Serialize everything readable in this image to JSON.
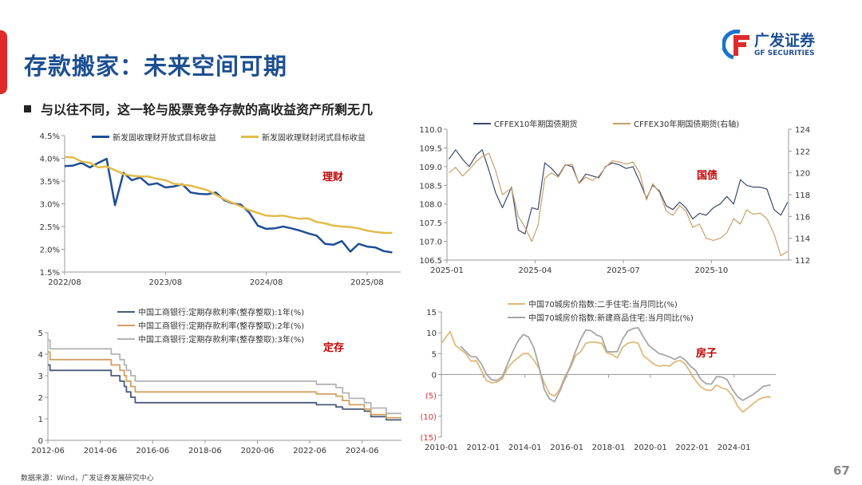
{
  "header": {
    "title": "存款搬家：未来空间可期",
    "subtitle": "与以往不同，这一轮与股票竞争存款的高收益资产所剩无几",
    "logo_cn": "广发证券",
    "logo_en": "GF SECURITIES",
    "title_color": "#1d4f91",
    "accent_color": "#e02a2a"
  },
  "footer": {
    "source": "数据来源：Wind，广发证券发展研究中心",
    "page_number": "67"
  },
  "chart_data": [
    {
      "type": "line",
      "tag": "理财",
      "x_ticks": [
        "2022/08",
        "2023/08",
        "2024/08",
        "2025/08"
      ],
      "x_tick_dates": [
        "2022-08",
        "2023-08",
        "2024-08",
        "2025-08"
      ],
      "y_ticks": [
        1.5,
        2.0,
        2.5,
        3.0,
        3.5,
        4.0,
        4.5
      ],
      "y_tick_labels": [
        "1.5%",
        "2.0%",
        "2.5%",
        "3.0%",
        "3.5%",
        "4.0%",
        "4.5%"
      ],
      "ylim": [
        1.5,
        4.5
      ],
      "x_range": [
        "2022-08",
        "2025-12"
      ],
      "dates": [
        "2022-08",
        "2022-09",
        "2022-10",
        "2022-11",
        "2022-12",
        "2023-01",
        "2023-02",
        "2023-03",
        "2023-04",
        "2023-05",
        "2023-06",
        "2023-07",
        "2023-08",
        "2023-09",
        "2023-10",
        "2023-11",
        "2023-12",
        "2024-01",
        "2024-02",
        "2024-03",
        "2024-04",
        "2024-05",
        "2024-06",
        "2024-07",
        "2024-08",
        "2024-09",
        "2024-10",
        "2024-11",
        "2024-12",
        "2025-01",
        "2025-02",
        "2025-03",
        "2025-04",
        "2025-05",
        "2025-06",
        "2025-07",
        "2025-08",
        "2025-09",
        "2025-10",
        "2025-11"
      ],
      "series": [
        {
          "name": "新发固收理财开放式目标收益",
          "color": "#1f4e96",
          "values": [
            3.83,
            3.84,
            3.9,
            3.8,
            3.9,
            3.99,
            2.97,
            3.68,
            3.52,
            3.58,
            3.42,
            3.45,
            3.36,
            3.38,
            3.43,
            3.25,
            3.22,
            3.21,
            3.25,
            3.08,
            3.01,
            2.98,
            2.8,
            2.52,
            2.45,
            2.46,
            2.5,
            2.46,
            2.41,
            2.35,
            2.3,
            2.12,
            2.1,
            2.18,
            1.95,
            2.12,
            2.06,
            2.04,
            1.96,
            1.93
          ]
        },
        {
          "name": "新发固收理财封闭式目标收益",
          "color": "#e2bb4a",
          "values": [
            4.03,
            4.02,
            3.93,
            3.9,
            3.8,
            3.82,
            3.74,
            3.65,
            3.62,
            3.6,
            3.6,
            3.55,
            3.52,
            3.44,
            3.42,
            3.4,
            3.35,
            3.3,
            3.2,
            3.1,
            3.02,
            2.94,
            2.86,
            2.8,
            2.74,
            2.73,
            2.74,
            2.7,
            2.67,
            2.68,
            2.6,
            2.57,
            2.52,
            2.5,
            2.49,
            2.46,
            2.41,
            2.38,
            2.36,
            2.36
          ]
        }
      ]
    },
    {
      "type": "line",
      "tag": "国债",
      "x_ticks": [
        "2025-01",
        "2025-04",
        "2025-07",
        "2025-10"
      ],
      "x_tick_dates": [
        "2025-01-01",
        "2025-04-01",
        "2025-07-01",
        "2025-10-01"
      ],
      "x_range": [
        "2025-01-01",
        "2025-12-20"
      ],
      "y_ticks": [
        106.5,
        107.0,
        107.5,
        108.0,
        108.5,
        109.0,
        109.5,
        110.0
      ],
      "y_tick_labels": [
        "106.5",
        "107.0",
        "107.5",
        "108.0",
        "108.5",
        "109.0",
        "109.5",
        "110.0"
      ],
      "ylim": [
        106.5,
        110.0
      ],
      "y2_ticks": [
        112,
        114,
        116,
        118,
        120,
        122,
        124
      ],
      "y2_tick_labels": [
        "112",
        "114",
        "116",
        "118",
        "120",
        "122",
        "124"
      ],
      "y2lim": [
        112,
        124
      ],
      "dates": [
        "2025-01-03",
        "2025-01-10",
        "2025-01-17",
        "2025-01-24",
        "2025-01-31",
        "2025-02-07",
        "2025-02-14",
        "2025-02-21",
        "2025-02-28",
        "2025-03-07",
        "2025-03-14",
        "2025-03-21",
        "2025-03-28",
        "2025-04-04",
        "2025-04-11",
        "2025-04-18",
        "2025-04-25",
        "2025-05-02",
        "2025-05-09",
        "2025-05-16",
        "2025-05-23",
        "2025-05-30",
        "2025-06-06",
        "2025-06-13",
        "2025-06-20",
        "2025-06-27",
        "2025-07-04",
        "2025-07-11",
        "2025-07-18",
        "2025-07-25",
        "2025-08-01",
        "2025-08-08",
        "2025-08-15",
        "2025-08-22",
        "2025-08-29",
        "2025-09-05",
        "2025-09-12",
        "2025-09-19",
        "2025-09-26",
        "2025-10-03",
        "2025-10-10",
        "2025-10-17",
        "2025-10-24",
        "2025-10-31",
        "2025-11-07",
        "2025-11-14",
        "2025-11-21",
        "2025-11-28",
        "2025-12-05",
        "2025-12-12",
        "2025-12-19"
      ],
      "series": [
        {
          "name": "CFFEX10年期国债期货",
          "color": "#3a4a6b",
          "axis": "left",
          "values": [
            109.2,
            109.45,
            109.2,
            109.0,
            109.3,
            109.45,
            108.9,
            108.3,
            107.9,
            108.45,
            107.3,
            107.2,
            107.9,
            107.85,
            109.1,
            108.95,
            108.75,
            109.05,
            109.0,
            108.55,
            108.8,
            108.75,
            108.7,
            109.0,
            109.1,
            109.05,
            108.95,
            109.0,
            108.6,
            108.15,
            108.5,
            108.35,
            107.95,
            107.85,
            108.05,
            107.9,
            107.6,
            107.75,
            107.7,
            107.9,
            108.0,
            108.2,
            108.0,
            108.65,
            108.5,
            108.45,
            108.45,
            108.4,
            107.85,
            107.7,
            108.05
          ]
        },
        {
          "name": "CFFEX30年期国债期货(右轴)",
          "color": "#c9a06a",
          "axis": "right",
          "values": [
            120.0,
            120.5,
            119.7,
            120.3,
            121.0,
            121.5,
            121.8,
            120.2,
            118.0,
            118.6,
            116.0,
            115.0,
            113.7,
            115.2,
            119.5,
            120.0,
            119.6,
            120.7,
            120.8,
            119.0,
            119.6,
            119.3,
            119.7,
            120.5,
            121.1,
            121.0,
            120.8,
            121.0,
            120.0,
            117.5,
            119.0,
            118.2,
            116.5,
            116.1,
            117.0,
            116.5,
            115.0,
            115.3,
            114.0,
            113.8,
            114.0,
            114.5,
            115.8,
            115.3,
            116.6,
            116.2,
            116.3,
            115.8,
            114.4,
            112.4,
            112.8
          ]
        }
      ]
    },
    {
      "type": "line",
      "step": true,
      "tag": "定存",
      "x_ticks": [
        "2012-06",
        "2014-06",
        "2016-06",
        "2018-06",
        "2020-06",
        "2022-06",
        "2024-06"
      ],
      "x_range": [
        "2012-06",
        "2025-12"
      ],
      "y_ticks": [
        0,
        1,
        2,
        3,
        4,
        5
      ],
      "y_tick_labels": [
        "0",
        "1",
        "2",
        "3",
        "4",
        "5"
      ],
      "ylim": [
        0,
        5
      ],
      "dates": [
        "2012-06",
        "2012-07",
        "2014-11",
        "2015-03",
        "2015-05",
        "2015-06",
        "2015-08",
        "2015-10",
        "2022-09",
        "2023-06",
        "2023-09",
        "2023-12",
        "2024-07",
        "2024-10",
        "2025-05",
        "2025-12"
      ],
      "series": [
        {
          "name": "中国工商银行:定期存款利率(整存整取):1年(%)",
          "color": "#4a5a7a",
          "values": [
            3.5,
            3.25,
            3.0,
            2.75,
            2.5,
            2.25,
            2.0,
            1.75,
            1.65,
            1.55,
            1.45,
            1.45,
            1.35,
            1.1,
            0.95,
            0.95
          ]
        },
        {
          "name": "中国工商银行:定期存款利率(整存整取):2年(%)",
          "color": "#d1a060",
          "values": [
            4.1,
            3.75,
            3.5,
            3.25,
            3.0,
            2.75,
            2.5,
            2.25,
            2.15,
            2.05,
            1.85,
            1.65,
            1.45,
            1.2,
            1.05,
            1.05
          ]
        },
        {
          "name": "中国工商银行:定期存款利率(整存整取):3年(%)",
          "color": "#b3b3b3",
          "values": [
            4.65,
            4.25,
            4.0,
            3.75,
            3.5,
            3.25,
            3.0,
            2.75,
            2.6,
            2.45,
            2.2,
            1.95,
            1.75,
            1.5,
            1.25,
            1.25
          ]
        }
      ]
    },
    {
      "type": "line",
      "tag": "房子",
      "x_ticks": [
        "2010-01",
        "2012-01",
        "2014-01",
        "2016-01",
        "2018-01",
        "2020-01",
        "2022-01",
        "2024-01"
      ],
      "x_range": [
        "2010-01",
        "2026-01"
      ],
      "y_ticks": [
        -15,
        -10,
        -5,
        0,
        5,
        10,
        15
      ],
      "y_tick_labels": [
        "(15)",
        "(10)",
        "(5)",
        "0",
        "5",
        "10",
        "15"
      ],
      "negative_label_color": "#e03030",
      "ylim": [
        -15,
        15
      ],
      "series": [
        {
          "name": "中国70城房价指数:二手住宅:当月同比(%)",
          "color": "#e0b97a",
          "points": [
            [
              "2010-01",
              7.5
            ],
            [
              "2010-06",
              10.3
            ],
            [
              "2010-09",
              7.0
            ],
            [
              "2010-12",
              6.0
            ],
            [
              "2011-03",
              5.0
            ],
            [
              "2011-06",
              3.2
            ],
            [
              "2011-09",
              3.3
            ],
            [
              "2011-12",
              1.0
            ],
            [
              "2012-03",
              -1.5
            ],
            [
              "2012-06",
              -2.0
            ],
            [
              "2012-09",
              -1.8
            ],
            [
              "2012-12",
              -1.0
            ],
            [
              "2013-03",
              1.5
            ],
            [
              "2013-06",
              3.0
            ],
            [
              "2013-09",
              4.0
            ],
            [
              "2013-12",
              5.0
            ],
            [
              "2014-03",
              5.0
            ],
            [
              "2014-06",
              3.5
            ],
            [
              "2014-09",
              1.5
            ],
            [
              "2014-12",
              -2.0
            ],
            [
              "2015-03",
              -4.5
            ],
            [
              "2015-06",
              -5.2
            ],
            [
              "2015-09",
              -3.5
            ],
            [
              "2015-12",
              -0.3
            ],
            [
              "2016-03",
              1.5
            ],
            [
              "2016-06",
              4.5
            ],
            [
              "2016-09",
              5.5
            ],
            [
              "2016-12",
              7.5
            ],
            [
              "2017-03",
              7.8
            ],
            [
              "2017-06",
              7.7
            ],
            [
              "2017-09",
              7.5
            ],
            [
              "2017-12",
              5.2
            ],
            [
              "2018-03",
              4.8
            ],
            [
              "2018-06",
              4.0
            ],
            [
              "2018-09",
              6.5
            ],
            [
              "2018-12",
              7.5
            ],
            [
              "2019-03",
              7.8
            ],
            [
              "2019-06",
              7.5
            ],
            [
              "2019-09",
              4.5
            ],
            [
              "2019-12",
              3.5
            ],
            [
              "2020-03",
              2.5
            ],
            [
              "2020-06",
              2.0
            ],
            [
              "2020-09",
              2.2
            ],
            [
              "2020-12",
              2.0
            ],
            [
              "2021-03",
              3.0
            ],
            [
              "2021-06",
              3.4
            ],
            [
              "2021-09",
              2.5
            ],
            [
              "2021-12",
              0.5
            ],
            [
              "2022-03",
              -1.5
            ],
            [
              "2022-06",
              -3.0
            ],
            [
              "2022-09",
              -3.7
            ],
            [
              "2022-12",
              -3.8
            ],
            [
              "2023-03",
              -2.5
            ],
            [
              "2023-06",
              -3.2
            ],
            [
              "2023-09",
              -3.6
            ],
            [
              "2023-12",
              -5.0
            ],
            [
              "2024-03",
              -7.5
            ],
            [
              "2024-06",
              -9.0
            ],
            [
              "2024-09",
              -8.0
            ],
            [
              "2024-12",
              -7.0
            ],
            [
              "2025-03",
              -6.0
            ],
            [
              "2025-06",
              -5.5
            ],
            [
              "2025-09",
              -5.3
            ],
            [
              "2025-10",
              -5.6
            ]
          ]
        },
        {
          "name": "中国70城房价指数:新建商品住宅:当月同比(%)",
          "color": "#a6a6a6",
          "points": [
            [
              "2010-12",
              6.8
            ],
            [
              "2011-03",
              5.5
            ],
            [
              "2011-06",
              4.3
            ],
            [
              "2011-09",
              4.2
            ],
            [
              "2011-12",
              2.5
            ],
            [
              "2012-03",
              0
            ],
            [
              "2012-06",
              -1.3
            ],
            [
              "2012-09",
              -1.4
            ],
            [
              "2012-12",
              -0.5
            ],
            [
              "2013-03",
              2.5
            ],
            [
              "2013-06",
              5.5
            ],
            [
              "2013-09",
              8.0
            ],
            [
              "2013-12",
              9.6
            ],
            [
              "2014-03",
              9.0
            ],
            [
              "2014-06",
              6.5
            ],
            [
              "2014-09",
              2.0
            ],
            [
              "2014-12",
              -3.5
            ],
            [
              "2015-03",
              -5.8
            ],
            [
              "2015-06",
              -6.5
            ],
            [
              "2015-09",
              -4.0
            ],
            [
              "2015-12",
              -1.0
            ],
            [
              "2016-03",
              2.0
            ],
            [
              "2016-06",
              5.5
            ],
            [
              "2016-09",
              8.5
            ],
            [
              "2016-12",
              10.7
            ],
            [
              "2017-03",
              10.5
            ],
            [
              "2017-06",
              9.5
            ],
            [
              "2017-09",
              9.0
            ],
            [
              "2017-12",
              5.5
            ],
            [
              "2018-03",
              5.4
            ],
            [
              "2018-06",
              5.5
            ],
            [
              "2018-09",
              8.5
            ],
            [
              "2018-12",
              10.4
            ],
            [
              "2019-03",
              11.0
            ],
            [
              "2019-06",
              11.2
            ],
            [
              "2019-09",
              9.0
            ],
            [
              "2019-12",
              7.0
            ],
            [
              "2020-03",
              6.0
            ],
            [
              "2020-06",
              5.0
            ],
            [
              "2020-09",
              4.7
            ],
            [
              "2020-12",
              4.2
            ],
            [
              "2021-03",
              3.6
            ],
            [
              "2021-06",
              4.3
            ],
            [
              "2021-09",
              3.5
            ],
            [
              "2021-12",
              2.0
            ],
            [
              "2022-03",
              1.0
            ],
            [
              "2022-06",
              -1.2
            ],
            [
              "2022-09",
              -2.2
            ],
            [
              "2022-12",
              -2.3
            ],
            [
              "2023-03",
              -0.5
            ],
            [
              "2023-06",
              -0.6
            ],
            [
              "2023-09",
              -1.2
            ],
            [
              "2023-12",
              -3.5
            ],
            [
              "2024-03",
              -5.3
            ],
            [
              "2024-06",
              -6.2
            ],
            [
              "2024-09",
              -5.5
            ],
            [
              "2024-12",
              -4.8
            ],
            [
              "2025-03",
              -3.8
            ],
            [
              "2025-06",
              -2.8
            ],
            [
              "2025-10",
              -2.5
            ]
          ]
        }
      ]
    }
  ]
}
